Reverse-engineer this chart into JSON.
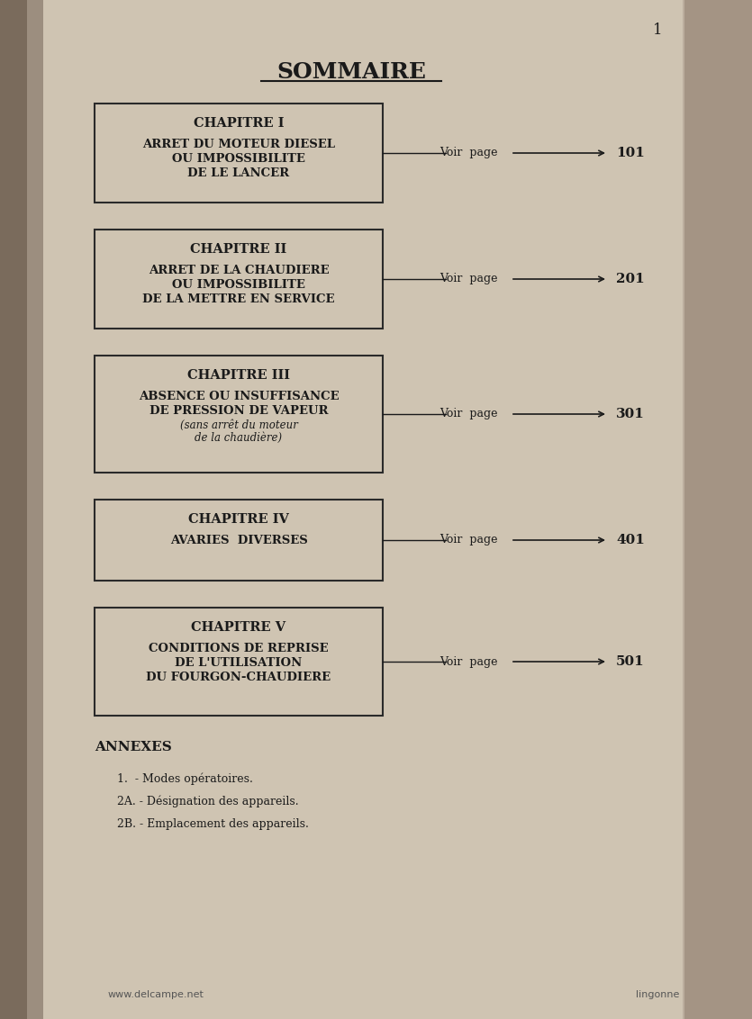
{
  "bg_color": "#c8bfb0",
  "page_bg": "#d4cbbf",
  "paper_color": "#cfc6b8",
  "text_color": "#1a1a1a",
  "title": "SOMMAIRE",
  "page_number": "1",
  "chapters": [
    {
      "number": "CHAPITRE I",
      "lines": [
        "ARRET DU MOTEUR DIESEL",
        "OU IMPOSSIBILITE",
        "DE LE LANCER"
      ],
      "voir_page": "101"
    },
    {
      "number": "CHAPITRE II",
      "lines": [
        "ARRET DE LA CHAUDIERE",
        "OU IMPOSSIBILITE",
        "DE LA METTRE EN SERVICE"
      ],
      "voir_page": "201"
    },
    {
      "number": "CHAPITRE III",
      "lines": [
        "ABSENCE OU INSUFFISANCE",
        "DE PRESSION DE VAPEUR",
        "(sans arrêt du moteur",
        "de la chaudière)"
      ],
      "voir_page": "301"
    },
    {
      "number": "CHAPITRE IV",
      "lines": [
        "AVARIES  DIVERSES"
      ],
      "voir_page": "401"
    },
    {
      "number": "CHAPITRE V",
      "lines": [
        "CONDITIONS DE REPRISE",
        "DE L'UTILISATION",
        "DU FOURGON-CHAUDIERE"
      ],
      "voir_page": "501"
    }
  ],
  "annexes_title": "ANNEXES",
  "annexes": [
    "1.  - Modes opératoires.",
    "2A. - Désignation des appareils.",
    "2B. - Emplacement des appareils."
  ],
  "footer_left": "www.delcampe.net",
  "footer_right": "lingonne"
}
